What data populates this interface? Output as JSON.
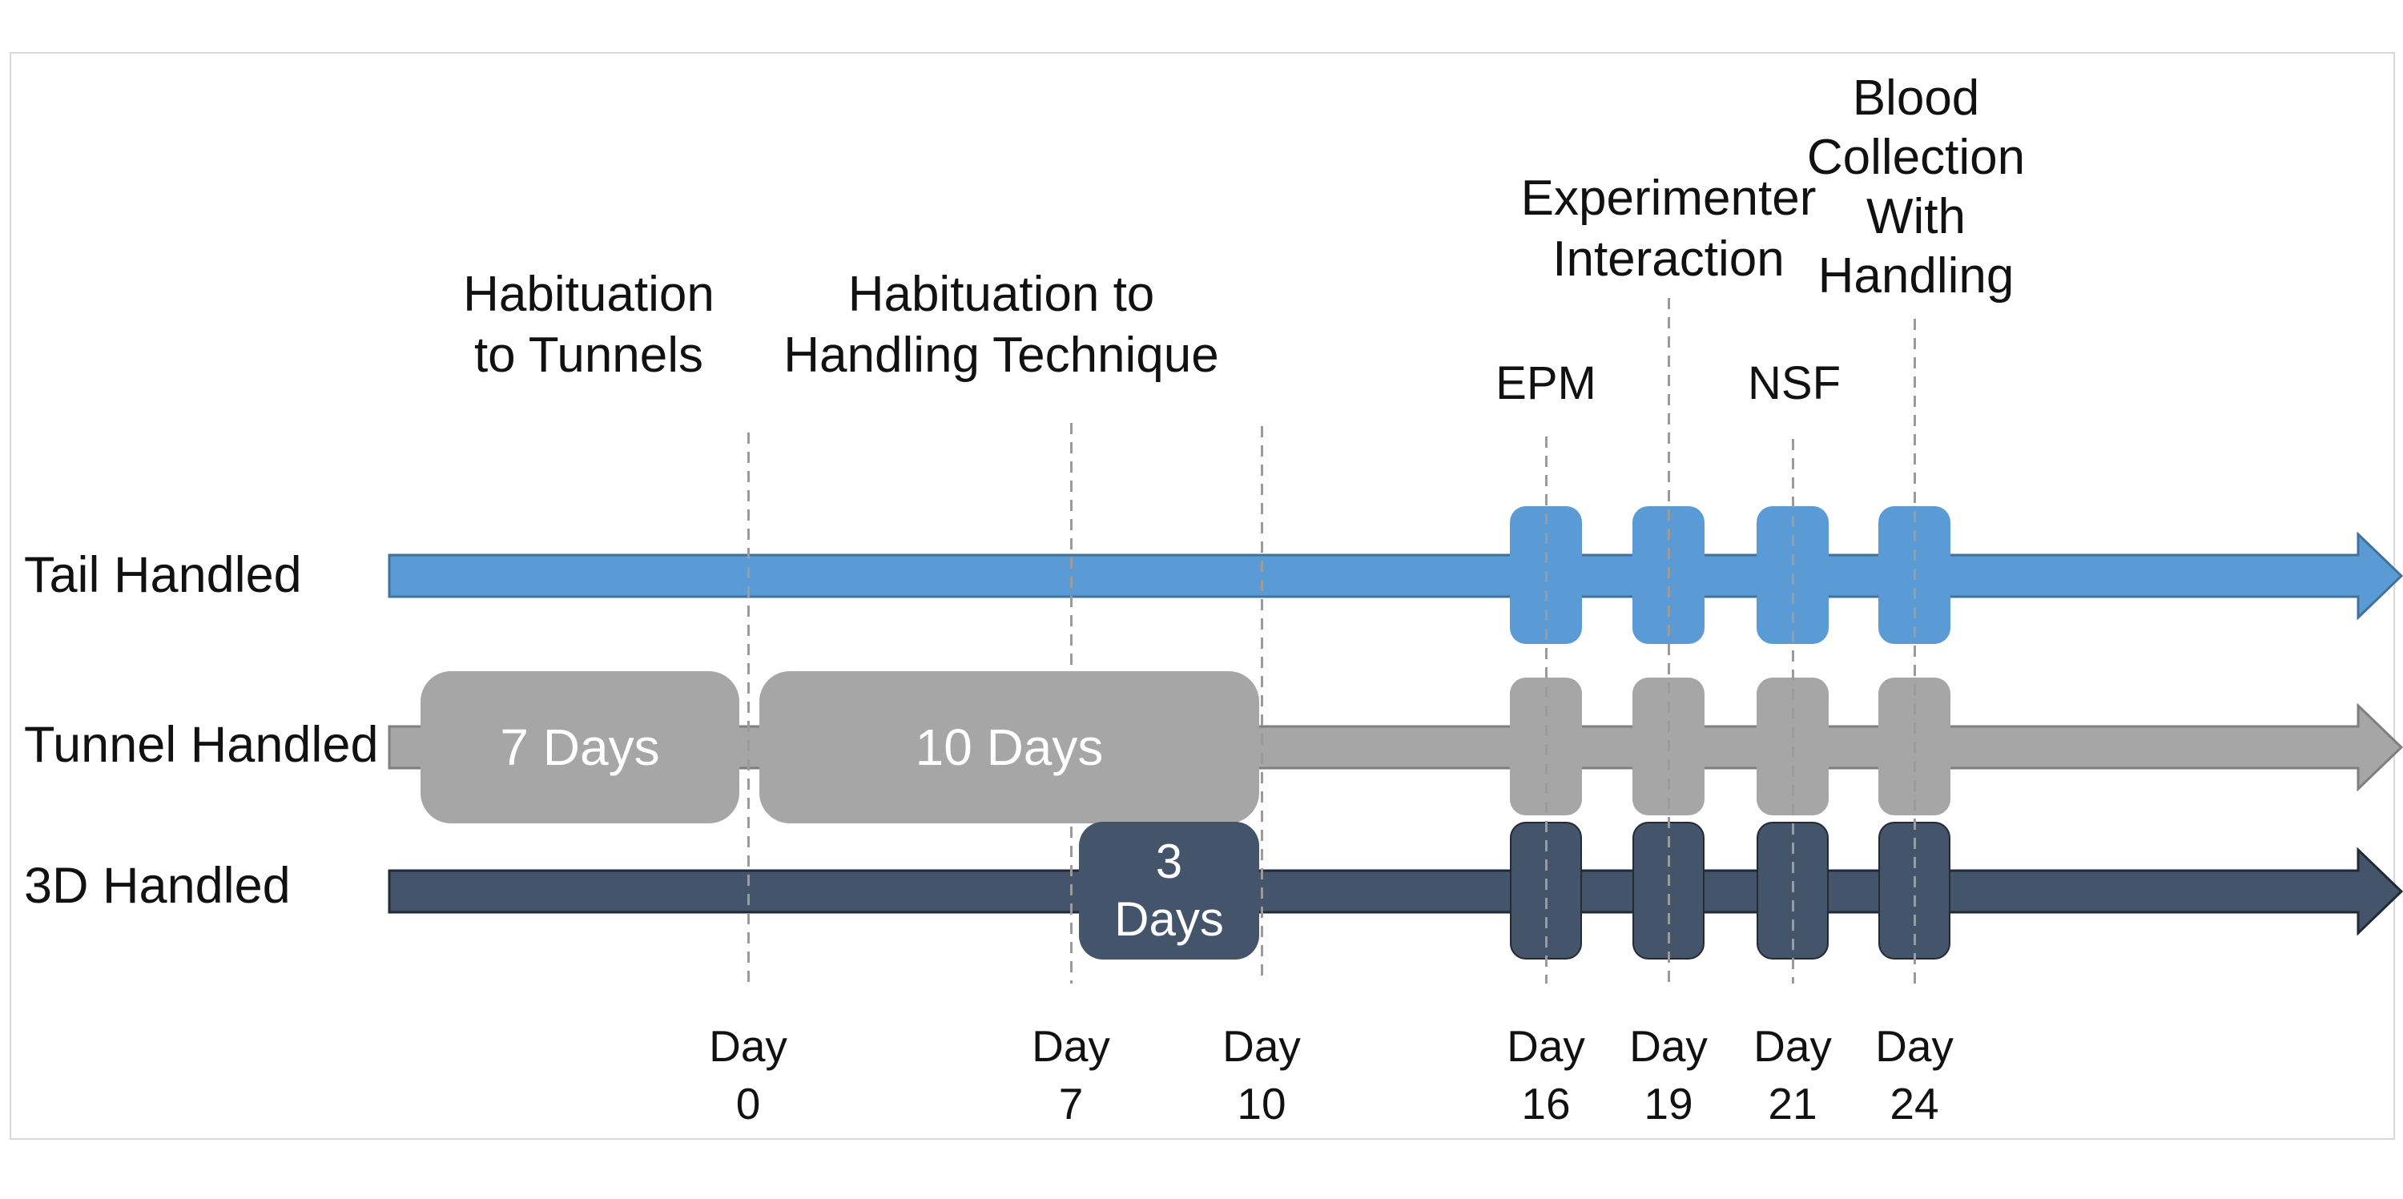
{
  "figure": {
    "phases": {
      "habituation_tunnels": "Habituation\nto Tunnels",
      "habituation_handling": "Habituation to\nHandling Technique",
      "experimenter_interaction": "Experimenter\nInteraction",
      "blood_collection": "Blood\nCollection\nWith\nHandling",
      "epm": "EPM",
      "nsf": "NSF"
    },
    "rows": [
      {
        "key": "tail",
        "label": "Tail Handled"
      },
      {
        "key": "tunnel",
        "label": "Tunnel Handled"
      },
      {
        "key": "threed",
        "label": "3D Handled"
      }
    ],
    "duration_boxes": [
      {
        "key": "seven",
        "row": "tunnel",
        "label": "7 Days"
      },
      {
        "key": "ten",
        "row": "tunnel",
        "label": "10 Days"
      },
      {
        "key": "three",
        "row": "threed",
        "label": "3\nDays"
      }
    ],
    "day_word": "Day",
    "days": [
      {
        "num": "0"
      },
      {
        "num": "7"
      },
      {
        "num": "10"
      },
      {
        "num": "16"
      },
      {
        "num": "19"
      },
      {
        "num": "21"
      },
      {
        "num": "24"
      }
    ],
    "event_day_indices": [
      3,
      4,
      5,
      6
    ],
    "colors": {
      "tail_fill": "#5b9bd5",
      "tail_stroke": "#41719c",
      "tunnel_fill": "#a6a6a6",
      "tunnel_stroke": "#7f7f7f",
      "threed_fill": "#44546a",
      "threed_stroke": "#222a35",
      "dash_line": "#9b9b9b",
      "panel_border": "#d9d9d9",
      "box_text": "#ffffff"
    }
  }
}
